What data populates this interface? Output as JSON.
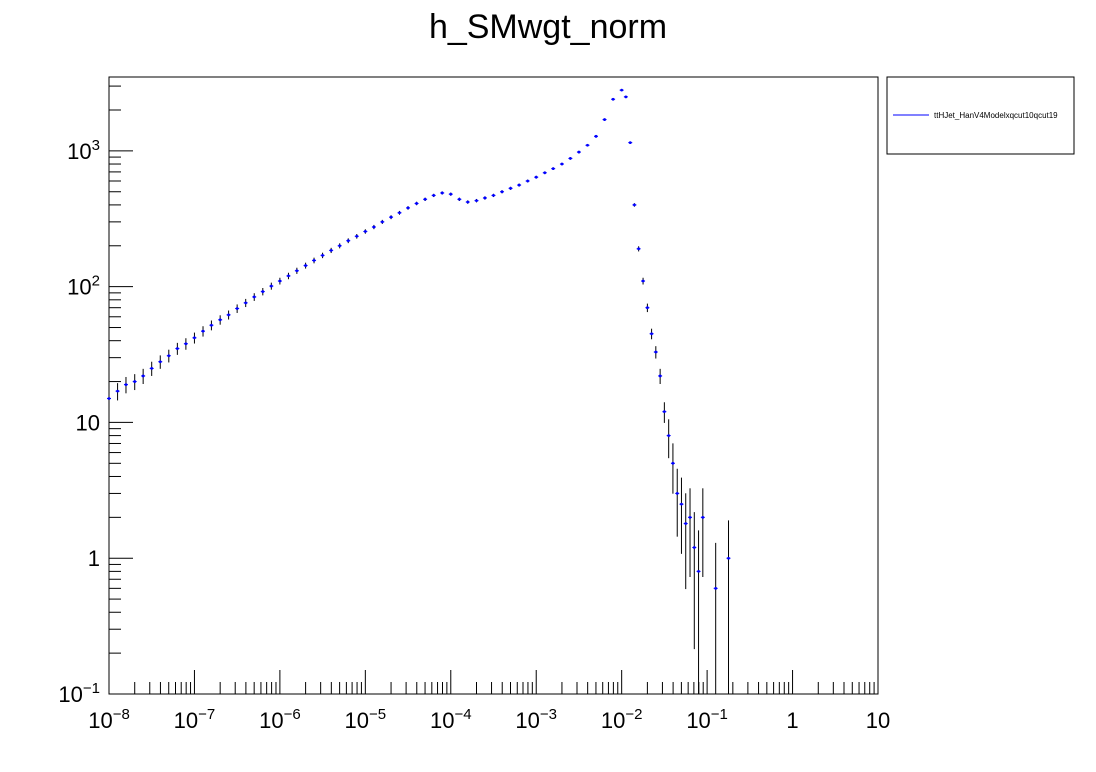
{
  "chart_data": {
    "type": "scatter",
    "title": "h_SMwgt_norm",
    "xlabel": "",
    "ylabel": "",
    "xscale": "log",
    "yscale": "log",
    "xlim": [
      1e-08,
      10
    ],
    "ylim": [
      0.1,
      3500
    ],
    "x_tick_labels": [
      "10^-8",
      "10^-7",
      "10^-6",
      "10^-5",
      "10^-4",
      "10^-3",
      "10^-2",
      "10^-1",
      "1",
      "10"
    ],
    "y_tick_labels": [
      "10^-1",
      "1",
      "10",
      "10^2",
      "10^3"
    ],
    "grid": false,
    "legend_position": "top-right-outside",
    "marker_color": "#0000ff",
    "errorbar_color": "#000000",
    "series": [
      {
        "name": "ttHJet_HanV4Modelxqcut10qcut19",
        "points": [
          [
            1e-08,
            15
          ],
          [
            1.26e-08,
            17
          ],
          [
            1.58e-08,
            19
          ],
          [
            2e-08,
            20
          ],
          [
            2.51e-08,
            22
          ],
          [
            3.16e-08,
            25
          ],
          [
            3.98e-08,
            28
          ],
          [
            5.01e-08,
            31
          ],
          [
            6.31e-08,
            35
          ],
          [
            7.94e-08,
            38
          ],
          [
            1e-07,
            42
          ],
          [
            1.26e-07,
            47
          ],
          [
            1.58e-07,
            52
          ],
          [
            2e-07,
            57
          ],
          [
            2.51e-07,
            62
          ],
          [
            3.16e-07,
            69
          ],
          [
            3.98e-07,
            76
          ],
          [
            5.01e-07,
            84
          ],
          [
            6.31e-07,
            92
          ],
          [
            7.94e-07,
            101
          ],
          [
            1e-06,
            110
          ],
          [
            1.26e-06,
            120
          ],
          [
            1.58e-06,
            131
          ],
          [
            2e-06,
            143
          ],
          [
            2.51e-06,
            156
          ],
          [
            3.16e-06,
            170
          ],
          [
            3.98e-06,
            185
          ],
          [
            5.01e-06,
            200
          ],
          [
            6.31e-06,
            218
          ],
          [
            7.94e-06,
            235
          ],
          [
            1e-05,
            255
          ],
          [
            1.26e-05,
            275
          ],
          [
            1.58e-05,
            300
          ],
          [
            2e-05,
            325
          ],
          [
            2.51e-05,
            350
          ],
          [
            3.16e-05,
            380
          ],
          [
            3.98e-05,
            410
          ],
          [
            5.01e-05,
            440
          ],
          [
            6.31e-05,
            470
          ],
          [
            7.94e-05,
            490
          ],
          [
            0.0001,
            480
          ],
          [
            0.000126,
            440
          ],
          [
            0.000158,
            420
          ],
          [
            0.0002,
            430
          ],
          [
            0.000251,
            450
          ],
          [
            0.000316,
            470
          ],
          [
            0.000398,
            500
          ],
          [
            0.000501,
            530
          ],
          [
            0.000631,
            560
          ],
          [
            0.000794,
            600
          ],
          [
            0.001,
            640
          ],
          [
            0.00126,
            690
          ],
          [
            0.00158,
            740
          ],
          [
            0.002,
            800
          ],
          [
            0.00251,
            880
          ],
          [
            0.00316,
            980
          ],
          [
            0.00398,
            1100
          ],
          [
            0.00501,
            1280
          ],
          [
            0.00631,
            1700
          ],
          [
            0.00794,
            2400
          ],
          [
            0.01,
            2800
          ],
          [
            0.0112,
            2500
          ],
          [
            0.0126,
            1150
          ],
          [
            0.0141,
            400
          ],
          [
            0.0158,
            190
          ],
          [
            0.0178,
            110
          ],
          [
            0.02,
            70
          ],
          [
            0.0224,
            45
          ],
          [
            0.0251,
            33
          ],
          [
            0.0282,
            22
          ],
          [
            0.0316,
            12
          ],
          [
            0.0355,
            8
          ],
          [
            0.0398,
            5
          ],
          [
            0.0447,
            3
          ],
          [
            0.0501,
            2.5
          ],
          [
            0.0562,
            1.8
          ],
          [
            0.0631,
            2.0
          ],
          [
            0.0708,
            1.2
          ],
          [
            0.0794,
            0.8
          ],
          [
            0.0891,
            2.0
          ],
          [
            0.126,
            0.6
          ],
          [
            0.178,
            1.0
          ]
        ]
      }
    ]
  }
}
